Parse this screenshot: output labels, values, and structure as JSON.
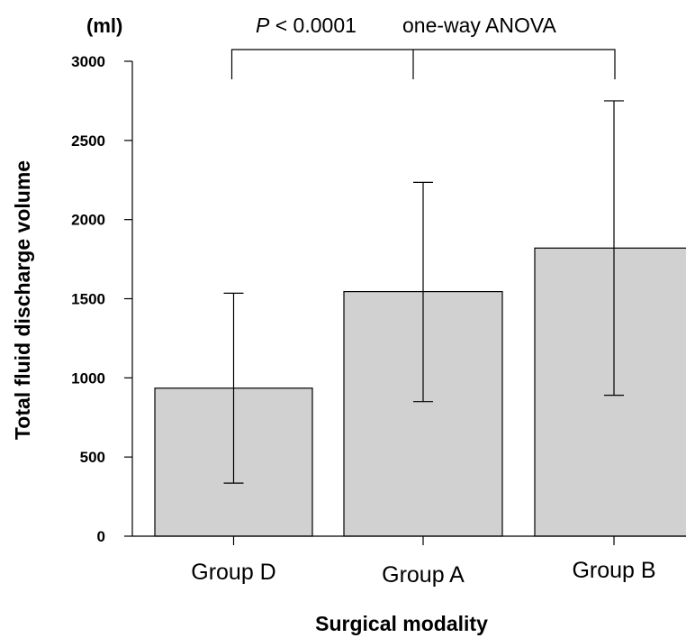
{
  "chart_data": {
    "type": "bar",
    "categories": [
      "Group D",
      "Group A",
      "Group B"
    ],
    "values": [
      935,
      1545,
      1820
    ],
    "error_upper": [
      1535,
      2235,
      2750
    ],
    "error_lower": [
      335,
      850,
      890
    ],
    "ylim": [
      0,
      3000
    ],
    "yticks": [
      0,
      500,
      1000,
      1500,
      2000,
      2500,
      3000
    ],
    "xlabel": "Surgical modality",
    "ylabel": "Total fluid discharge volume",
    "unit_label": "(ml)",
    "annotation": {
      "p_symbol": "P",
      "p_value": " < 0.0001",
      "test": "one-way ANOVA"
    },
    "bar_color": "#d0d1d0",
    "grid": false
  }
}
